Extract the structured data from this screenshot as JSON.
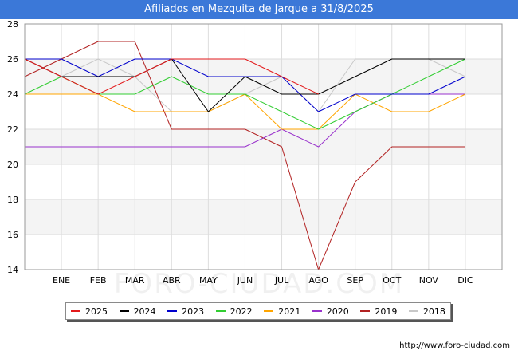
{
  "chart_data": {
    "type": "line",
    "title": "Afiliados en Mezquita de Jarque a 31/8/2025",
    "categories": [
      "",
      "ENE",
      "FEB",
      "MAR",
      "ABR",
      "MAY",
      "JUN",
      "JUL",
      "AGO",
      "SEP",
      "OCT",
      "NOV",
      "DIC"
    ],
    "ylim": [
      14,
      28
    ],
    "yticks": [
      14,
      16,
      18,
      20,
      22,
      24,
      26,
      28
    ],
    "xlabel": "",
    "ylabel": "",
    "grid": true,
    "legend_position": "bottom",
    "series": [
      {
        "name": "2018",
        "color": "#c8c8c8",
        "values": [
          26,
          25,
          26,
          25,
          23,
          23,
          24,
          25,
          23,
          26,
          26,
          26,
          25
        ]
      },
      {
        "name": "2019",
        "color": "#b22222",
        "values": [
          25,
          26,
          27,
          27,
          22,
          22,
          22,
          21,
          14,
          19,
          21,
          21,
          21
        ]
      },
      {
        "name": "2020",
        "color": "#9932cc",
        "values": [
          21,
          21,
          21,
          21,
          21,
          21,
          21,
          22,
          21,
          23,
          24,
          24,
          24
        ]
      },
      {
        "name": "2021",
        "color": "#ffa500",
        "values": [
          24,
          24,
          24,
          23,
          23,
          23,
          24,
          22,
          22,
          24,
          23,
          23,
          24
        ]
      },
      {
        "name": "2022",
        "color": "#32cd32",
        "values": [
          24,
          25,
          24,
          24,
          25,
          24,
          24,
          23,
          22,
          23,
          24,
          25,
          26
        ]
      },
      {
        "name": "2023",
        "color": "#0000cd",
        "values": [
          26,
          26,
          25,
          26,
          26,
          25,
          25,
          25,
          23,
          24,
          24,
          24,
          25
        ]
      },
      {
        "name": "2024",
        "color": "#000000",
        "values": [
          26,
          25,
          25,
          25,
          26,
          23,
          25,
          24,
          24,
          25,
          26,
          26,
          26
        ]
      },
      {
        "name": "2025",
        "color": "#e31a1c",
        "values": [
          26,
          25,
          24,
          25,
          26,
          26,
          26,
          25,
          24,
          null,
          null,
          null,
          null
        ]
      }
    ],
    "legend_order": [
      "2025",
      "2024",
      "2023",
      "2022",
      "2021",
      "2020",
      "2019",
      "2018"
    ]
  },
  "source": "http://www.foro-ciudad.com",
  "watermark": "FORO-CIUDAD.COM"
}
